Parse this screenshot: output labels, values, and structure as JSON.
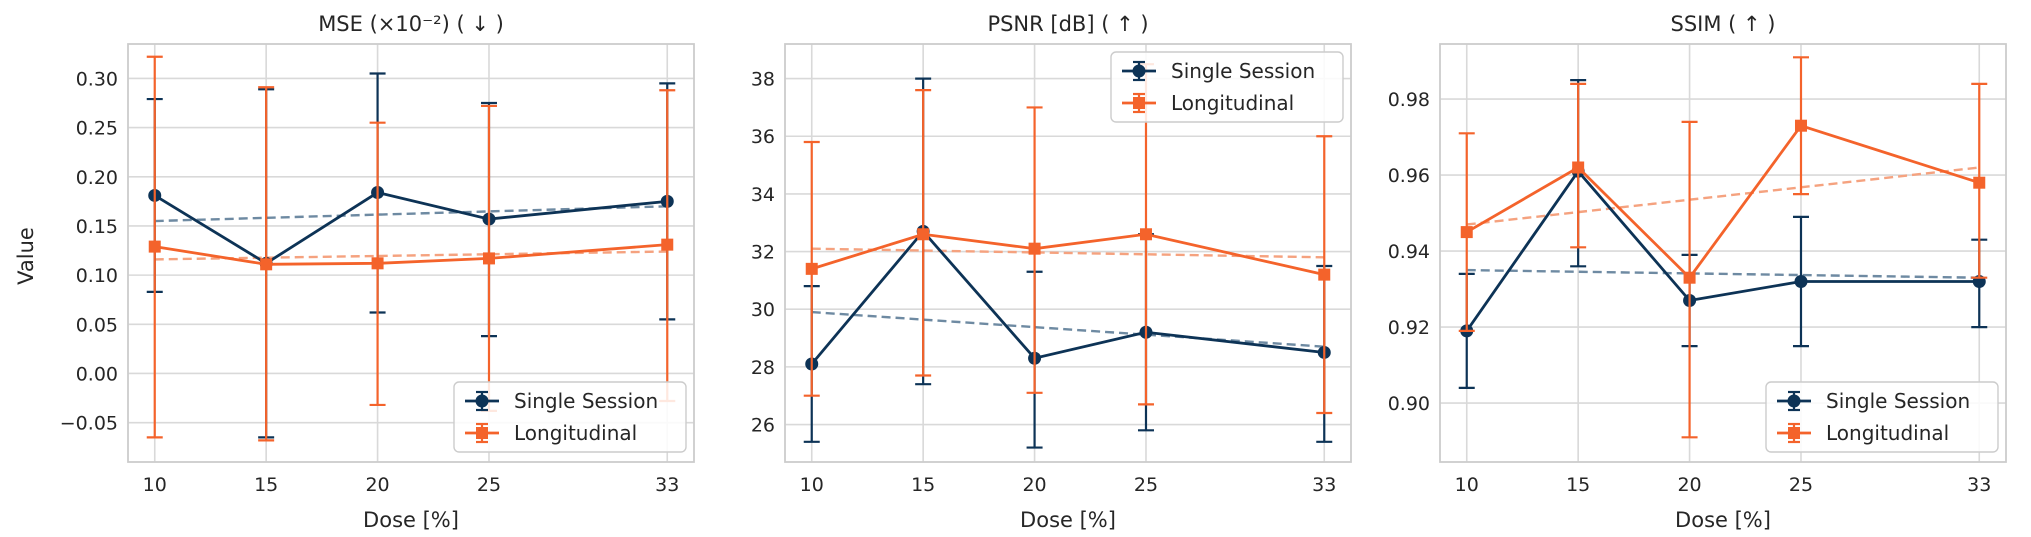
{
  "figure": {
    "ylabel": "Value",
    "colors": {
      "single": "#0d3356",
      "longitudinal": "#f4632b",
      "single_trend": "#6e8aa2",
      "longitudinal_trend": "#f5a27f",
      "grid": "#d9d9d9",
      "frame": "#cccccc"
    }
  },
  "chart_data": [
    {
      "type": "line",
      "title": "MSE (×10⁻²) ( ↓ )",
      "xlabel": "Dose [%]",
      "ylabel": "Value",
      "x": [
        10,
        15,
        20,
        25,
        33
      ],
      "xlim": [
        8.8,
        34.2
      ],
      "ylim": [
        -0.09,
        0.335
      ],
      "yticks": [
        -0.05,
        0.0,
        0.05,
        0.1,
        0.15,
        0.2,
        0.25,
        0.3
      ],
      "ytick_labels": [
        "−0.05",
        "0.00",
        "0.05",
        "0.10",
        "0.15",
        "0.20",
        "0.25",
        "0.30"
      ],
      "legend_position": "lower-right",
      "series": [
        {
          "name": "Single Session",
          "key": "single",
          "marker": "circle",
          "values": [
            0.181,
            0.112,
            0.184,
            0.157,
            0.175
          ],
          "err_low": [
            0.083,
            -0.065,
            0.062,
            0.038,
            0.055
          ],
          "err_high": [
            0.279,
            0.289,
            0.305,
            0.275,
            0.295
          ],
          "trend": [
            0.155,
            0.17
          ]
        },
        {
          "name": "Longitudinal",
          "key": "longitudinal",
          "marker": "square",
          "values": [
            0.129,
            0.111,
            0.112,
            0.117,
            0.131
          ],
          "err_low": [
            -0.065,
            -0.068,
            -0.032,
            -0.038,
            -0.028
          ],
          "err_high": [
            0.322,
            0.291,
            0.255,
            0.272,
            0.288
          ],
          "trend": [
            0.116,
            0.124
          ]
        }
      ]
    },
    {
      "type": "line",
      "title": "PSNR [dB] ( ↑ )",
      "xlabel": "Dose [%]",
      "x": [
        10,
        15,
        20,
        25,
        33
      ],
      "xlim": [
        8.8,
        34.2
      ],
      "ylim": [
        24.7,
        39.2
      ],
      "yticks": [
        26,
        28,
        30,
        32,
        34,
        36,
        38
      ],
      "ytick_labels": [
        "26",
        "28",
        "30",
        "32",
        "34",
        "36",
        "38"
      ],
      "legend_position": "top-right",
      "series": [
        {
          "name": "Single Session",
          "key": "single",
          "marker": "circle",
          "values": [
            28.1,
            32.7,
            28.3,
            29.2,
            28.5
          ],
          "err_low": [
            25.4,
            27.4,
            25.2,
            25.8,
            25.4
          ],
          "err_high": [
            30.8,
            38.0,
            31.3,
            32.6,
            31.5
          ],
          "trend": [
            29.9,
            28.7
          ]
        },
        {
          "name": "Longitudinal",
          "key": "longitudinal",
          "marker": "square",
          "values": [
            31.4,
            32.6,
            32.1,
            32.6,
            31.2
          ],
          "err_low": [
            27.0,
            27.7,
            27.1,
            26.7,
            26.4
          ],
          "err_high": [
            35.8,
            37.6,
            37.0,
            38.5,
            36.0
          ],
          "trend": [
            32.1,
            31.8
          ]
        }
      ]
    },
    {
      "type": "line",
      "title": "SSIM ( ↑ )",
      "xlabel": "Dose [%]",
      "x": [
        10,
        15,
        20,
        25,
        33
      ],
      "xlim": [
        8.8,
        34.2
      ],
      "ylim": [
        0.8845,
        0.9945
      ],
      "yticks": [
        0.9,
        0.92,
        0.94,
        0.96,
        0.98
      ],
      "ytick_labels": [
        "0.90",
        "0.92",
        "0.94",
        "0.96",
        "0.98"
      ],
      "legend_position": "lower-right",
      "series": [
        {
          "name": "Single Session",
          "key": "single",
          "marker": "circle",
          "values": [
            0.919,
            0.961,
            0.927,
            0.932,
            0.932
          ],
          "err_low": [
            0.904,
            0.936,
            0.915,
            0.915,
            0.92
          ],
          "err_high": [
            0.934,
            0.985,
            0.939,
            0.949,
            0.943
          ],
          "trend": [
            0.935,
            0.933
          ]
        },
        {
          "name": "Longitudinal",
          "key": "longitudinal",
          "marker": "square",
          "values": [
            0.945,
            0.962,
            0.933,
            0.973,
            0.958
          ],
          "err_low": [
            0.919,
            0.941,
            0.891,
            0.955,
            0.933
          ],
          "err_high": [
            0.971,
            0.984,
            0.974,
            0.991,
            0.984
          ],
          "trend": [
            0.947,
            0.962
          ]
        }
      ]
    }
  ]
}
